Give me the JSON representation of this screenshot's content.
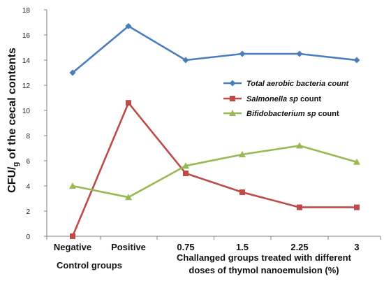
{
  "chart_data": {
    "type": "line",
    "categories": [
      "Negative",
      "Positive",
      "0.75",
      "1.5",
      "2.25",
      "3"
    ],
    "ylim": [
      0,
      18
    ],
    "yticks": [
      0,
      2,
      4,
      6,
      8,
      10,
      12,
      14,
      16,
      18
    ],
    "ylabel_main": "CFU/",
    "ylabel_sub": "g",
    "ylabel_rest": " of the cecal contents",
    "group_labels": {
      "control": "Control groups",
      "treated_line1": "Challanged groups treated with different",
      "treated_line2": "doses of thymol nanoemulsion (%)"
    },
    "grid": false,
    "legend_position": "center-right",
    "series": [
      {
        "name": "Total aerobic bacteria count",
        "name_parts": [
          "Total aerobic bacteria count"
        ],
        "color": "#4a7ebb",
        "marker": "diamond",
        "values": [
          13,
          16.7,
          14,
          14.5,
          14.5,
          14
        ]
      },
      {
        "name": "Salmonella sp count",
        "name_parts": [
          "Salmonella sp",
          " count"
        ],
        "color": "#be4b48",
        "marker": "square",
        "values": [
          0,
          10.6,
          5,
          3.5,
          2.3,
          2.3
        ]
      },
      {
        "name": "Bifidobacterium sp count",
        "name_parts": [
          "Bifidobacterium sp",
          " count"
        ],
        "color": "#98b954",
        "marker": "triangle",
        "values": [
          4,
          3.1,
          5.6,
          6.5,
          7.2,
          5.9
        ]
      }
    ]
  }
}
